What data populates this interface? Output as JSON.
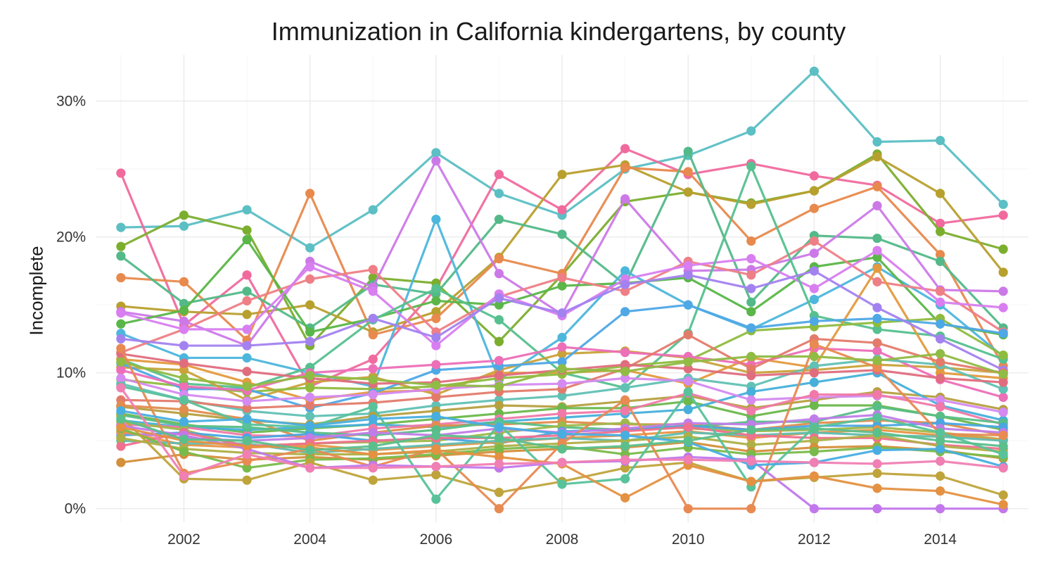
{
  "chart_data": {
    "type": "line",
    "title": "Immunization in California kindergartens, by county",
    "xlabel": "",
    "ylabel": "Incomplete",
    "x": [
      2001,
      2002,
      2003,
      2004,
      2005,
      2006,
      2007,
      2008,
      2009,
      2010,
      2011,
      2012,
      2013,
      2014,
      2015
    ],
    "xlim": [
      2000.6,
      2015.4
    ],
    "ylim": [
      -1.0,
      33.4
    ],
    "x_ticks": [
      2002,
      2004,
      2006,
      2008,
      2010,
      2012,
      2014
    ],
    "y_ticks": [
      0,
      10,
      20,
      30
    ],
    "x_tick_labels": [
      "2002",
      "2004",
      "2006",
      "2008",
      "2010",
      "2012",
      "2014"
    ],
    "y_tick_labels": [
      "0%",
      "10%",
      "20%",
      "30%"
    ],
    "grid": true,
    "legend": "none",
    "series": [
      {
        "color": "#5bbfc4",
        "values": [
          20.7,
          20.8,
          22.0,
          19.2,
          22.0,
          26.2,
          23.2,
          21.6,
          25.0,
          26.0,
          27.8,
          32.2,
          27.0,
          27.1,
          22.4
        ]
      },
      {
        "color": "#f06a9e",
        "values": [
          24.7,
          13.5,
          17.2,
          9.0,
          11.0,
          16.2,
          24.6,
          22.0,
          26.5,
          24.6,
          25.4,
          24.5,
          23.8,
          21.0,
          21.6
        ]
      },
      {
        "color": "#7cae2e",
        "values": [
          19.3,
          21.6,
          20.5,
          12.0,
          17.0,
          16.6,
          12.3,
          17.2,
          22.6,
          23.3,
          22.5,
          23.4,
          26.1,
          20.4,
          19.1
        ]
      },
      {
        "color": "#b8a02e",
        "values": [
          14.9,
          14.5,
          14.3,
          15.0,
          13.0,
          14.5,
          18.5,
          24.6,
          25.3,
          23.3,
          22.4,
          23.4,
          25.9,
          23.2,
          17.4
        ]
      },
      {
        "color": "#e8894d",
        "values": [
          17.0,
          16.7,
          12.4,
          23.2,
          12.8,
          14.0,
          18.4,
          17.3,
          25.1,
          24.8,
          19.7,
          22.1,
          23.7,
          18.7,
          10.5
        ]
      },
      {
        "color": "#53b989",
        "values": [
          18.6,
          15.1,
          16.0,
          13.3,
          16.5,
          15.8,
          21.3,
          20.2,
          16.5,
          26.3,
          15.2,
          20.1,
          19.9,
          18.2,
          13.3
        ]
      },
      {
        "color": "#cc79e8",
        "values": [
          14.5,
          13.8,
          12.0,
          18.2,
          16.3,
          25.6,
          17.3,
          14.3,
          22.8,
          17.5,
          17.6,
          18.8,
          22.3,
          16.1,
          16.0
        ]
      },
      {
        "color": "#4db6dc",
        "values": [
          12.9,
          11.1,
          11.1,
          10.0,
          9.0,
          21.3,
          9.5,
          12.6,
          17.5,
          15.0,
          13.2,
          15.4,
          17.8,
          15.0,
          11.2
        ]
      },
      {
        "color": "#5ab648",
        "values": [
          13.6,
          14.6,
          19.8,
          13.0,
          14.0,
          15.3,
          15.0,
          16.4,
          16.6,
          17.0,
          14.5,
          17.8,
          18.5,
          13.6,
          12.8
        ]
      },
      {
        "color": "#ee7f86",
        "values": [
          11.5,
          13.2,
          15.3,
          16.9,
          17.6,
          13.0,
          15.6,
          17.0,
          16.0,
          18.2,
          17.2,
          19.7,
          16.7,
          16.0,
          13.0
        ]
      },
      {
        "color": "#d87ef0",
        "values": [
          14.4,
          13.2,
          13.2,
          17.8,
          16.0,
          12.0,
          15.8,
          14.2,
          16.9,
          17.9,
          18.4,
          16.2,
          19.0,
          15.2,
          14.8
        ]
      },
      {
        "color": "#56c08f",
        "values": [
          11.0,
          9.2,
          8.9,
          10.4,
          13.9,
          16.2,
          13.9,
          10.0,
          8.9,
          12.9,
          25.2,
          14.2,
          13.2,
          12.7,
          11.0
        ]
      },
      {
        "color": "#c9a23a",
        "values": [
          10.4,
          10.2,
          8.0,
          9.3,
          9.7,
          8.4,
          10.2,
          11.4,
          11.6,
          11.1,
          10.0,
          10.2,
          10.6,
          10.4,
          10.0
        ]
      },
      {
        "color": "#e49a3e",
        "values": [
          11.0,
          10.6,
          9.3,
          8.0,
          8.6,
          8.7,
          10.0,
          10.0,
          10.2,
          9.2,
          11.1,
          10.4,
          17.7,
          10.0,
          9.6
        ]
      },
      {
        "color": "#8fbc3f",
        "values": [
          9.5,
          9.0,
          8.6,
          8.9,
          8.8,
          9.0,
          9.6,
          9.9,
          10.5,
          10.9,
          13.1,
          13.4,
          13.7,
          14.0,
          11.3
        ]
      },
      {
        "color": "#4fa8e6",
        "values": [
          10.7,
          8.8,
          8.8,
          7.4,
          8.5,
          10.2,
          10.5,
          10.8,
          14.5,
          15.0,
          13.3,
          13.8,
          14.0,
          13.6,
          12.9
        ]
      },
      {
        "color": "#ec6fb8",
        "values": [
          10.2,
          9.0,
          8.7,
          10.0,
          10.3,
          10.6,
          10.9,
          11.9,
          11.5,
          11.2,
          10.6,
          11.8,
          11.6,
          9.5,
          8.2
        ]
      },
      {
        "color": "#a382f0",
        "values": [
          12.5,
          12.0,
          12.0,
          12.3,
          14.0,
          12.6,
          15.5,
          14.4,
          16.5,
          17.2,
          16.2,
          17.5,
          14.8,
          12.5,
          10.2
        ]
      },
      {
        "color": "#61c1b4",
        "values": [
          9.2,
          8.0,
          7.2,
          6.8,
          7.0,
          7.6,
          8.0,
          8.3,
          8.9,
          9.6,
          9.0,
          10.5,
          11.0,
          10.6,
          8.8
        ]
      },
      {
        "color": "#e37b6b",
        "values": [
          8.0,
          7.9,
          7.4,
          7.6,
          7.8,
          8.2,
          8.6,
          8.8,
          10.3,
          12.8,
          10.3,
          12.5,
          12.2,
          10.8,
          10.0
        ]
      },
      {
        "color": "#b6a040",
        "values": [
          7.5,
          7.0,
          6.5,
          6.2,
          6.8,
          7.2,
          7.6,
          7.5,
          7.9,
          8.3,
          7.4,
          8.0,
          8.6,
          8.2,
          7.3
        ]
      },
      {
        "color": "#6cb84c",
        "values": [
          7.0,
          6.2,
          5.6,
          5.9,
          6.2,
          6.6,
          7.0,
          7.4,
          7.4,
          7.9,
          6.8,
          7.6,
          7.6,
          6.8,
          5.8
        ]
      },
      {
        "color": "#46b0da",
        "values": [
          6.5,
          6.0,
          5.8,
          6.0,
          6.2,
          6.0,
          6.4,
          6.7,
          7.0,
          7.3,
          8.6,
          9.3,
          10.0,
          7.6,
          6.5
        ]
      },
      {
        "color": "#d48af0",
        "values": [
          9.6,
          8.4,
          7.9,
          8.2,
          8.4,
          8.8,
          9.1,
          9.2,
          9.6,
          9.4,
          8.0,
          8.2,
          8.3,
          8.0,
          7.1
        ]
      },
      {
        "color": "#f079a8",
        "values": [
          6.2,
          6.0,
          5.4,
          5.3,
          5.9,
          6.2,
          6.6,
          7.0,
          7.2,
          8.5,
          7.2,
          8.4,
          8.4,
          7.5,
          6.2
        ]
      },
      {
        "color": "#e08d4e",
        "values": [
          7.6,
          7.3,
          6.6,
          5.0,
          5.6,
          6.1,
          6.2,
          6.4,
          6.2,
          6.2,
          5.8,
          6.3,
          6.5,
          6.3,
          5.4
        ]
      },
      {
        "color": "#58be86",
        "values": [
          6.9,
          6.1,
          6.0,
          5.6,
          5.4,
          5.8,
          6.4,
          6.0,
          5.8,
          6.0,
          6.4,
          6.4,
          7.5,
          6.8,
          6.3
        ]
      },
      {
        "color": "#9fb84a",
        "values": [
          6.4,
          5.8,
          4.6,
          4.8,
          4.9,
          5.0,
          5.6,
          6.1,
          6.3,
          5.9,
          5.7,
          5.8,
          6.0,
          5.6,
          5.1
        ]
      },
      {
        "color": "#e06d7e",
        "values": [
          11.4,
          10.7,
          10.1,
          9.6,
          9.2,
          9.3,
          9.8,
          10.2,
          10.6,
          10.3,
          9.8,
          10.0,
          10.2,
          9.6,
          9.3
        ]
      },
      {
        "color": "#4aa6e2",
        "values": [
          5.4,
          5.6,
          5.2,
          5.5,
          5.0,
          5.2,
          4.8,
          5.7,
          5.8,
          6.1,
          5.8,
          6.1,
          6.1,
          6.3,
          6.0
        ]
      },
      {
        "color": "#c07de8",
        "values": [
          5.6,
          5.2,
          5.0,
          5.2,
          5.6,
          5.4,
          5.9,
          5.6,
          5.9,
          6.3,
          6.2,
          6.6,
          6.9,
          5.9,
          5.6
        ]
      },
      {
        "color": "#e89545",
        "values": [
          5.7,
          4.7,
          4.5,
          4.7,
          4.3,
          4.6,
          4.9,
          5.2,
          5.4,
          5.7,
          5.2,
          5.6,
          5.8,
          5.4,
          5.1
        ]
      },
      {
        "color": "#61bcae",
        "values": [
          5.0,
          4.8,
          4.8,
          4.1,
          4.4,
          4.7,
          5.0,
          5.2,
          5.0,
          5.6,
          5.4,
          5.6,
          5.4,
          5.3,
          5.0
        ]
      },
      {
        "color": "#f0708f",
        "values": [
          4.6,
          5.6,
          4.6,
          4.8,
          5.0,
          5.2,
          5.2,
          5.4,
          5.7,
          6.0,
          5.4,
          5.2,
          5.2,
          4.7,
          4.4
        ]
      },
      {
        "color": "#aeb046",
        "values": [
          5.2,
          4.4,
          4.1,
          4.0,
          4.0,
          4.2,
          4.6,
          4.8,
          5.0,
          5.3,
          4.7,
          5.0,
          5.4,
          4.6,
          4.2
        ]
      },
      {
        "color": "#d48f3c",
        "values": [
          3.4,
          4.0,
          3.6,
          3.8,
          3.6,
          3.9,
          4.2,
          4.4,
          4.5,
          4.9,
          4.2,
          4.5,
          4.6,
          4.3,
          3.7
        ]
      },
      {
        "color": "#7aba4a",
        "values": [
          5.9,
          4.2,
          3.0,
          3.6,
          3.7,
          4.0,
          4.4,
          4.6,
          4.0,
          4.5,
          4.0,
          4.2,
          4.5,
          4.2,
          3.8
        ]
      },
      {
        "color": "#bfa43c",
        "values": [
          6.8,
          2.2,
          2.1,
          3.4,
          2.1,
          2.5,
          1.2,
          2.0,
          3.0,
          3.4,
          2.0,
          2.3,
          2.6,
          2.4,
          1.0
        ]
      },
      {
        "color": "#e88a52",
        "values": [
          11.8,
          2.6,
          3.5,
          4.4,
          3.1,
          4.4,
          0.0,
          4.8,
          8.0,
          0.0,
          0.0,
          12.1,
          10.4,
          5.5,
          5.4
        ]
      },
      {
        "color": "#58c29a",
        "values": [
          9.0,
          8.0,
          6.2,
          6.0,
          7.5,
          0.7,
          6.2,
          1.8,
          2.2,
          8.6,
          1.6,
          6.0,
          6.7,
          5.6,
          4.0
        ]
      },
      {
        "color": "#c278ec",
        "values": [
          6.1,
          5.4,
          4.4,
          3.0,
          3.2,
          3.1,
          3.0,
          3.4,
          3.5,
          3.8,
          3.6,
          0.0,
          0.0,
          0.0,
          0.0
        ]
      },
      {
        "color": "#e49142",
        "values": [
          6.0,
          5.0,
          4.6,
          4.5,
          4.0,
          4.3,
          3.8,
          3.3,
          0.8,
          3.2,
          2.0,
          2.4,
          1.5,
          1.3,
          0.3
        ]
      },
      {
        "color": "#48aee0",
        "values": [
          7.2,
          6.4,
          6.6,
          6.1,
          6.6,
          6.8,
          6.0,
          5.5,
          5.4,
          4.9,
          3.2,
          3.4,
          4.3,
          4.4,
          3.1
        ]
      },
      {
        "color": "#f07fb3",
        "values": [
          8.9,
          2.4,
          4.0,
          3.0,
          3.0,
          3.1,
          3.3,
          3.4,
          3.6,
          3.6,
          3.5,
          3.4,
          3.3,
          3.5,
          3.0
        ]
      },
      {
        "color": "#5bbf8c",
        "values": [
          6.6,
          5.1,
          5.0,
          4.3,
          4.6,
          5.4,
          5.2,
          4.4,
          4.6,
          5.0,
          5.8,
          5.9,
          5.6,
          5.0,
          4.6
        ]
      },
      {
        "color": "#90bb44",
        "values": [
          10.8,
          9.6,
          9.0,
          9.8,
          9.5,
          9.1,
          9.0,
          10.3,
          10.1,
          10.8,
          11.2,
          11.2,
          10.9,
          11.4,
          9.9
        ]
      }
    ]
  }
}
